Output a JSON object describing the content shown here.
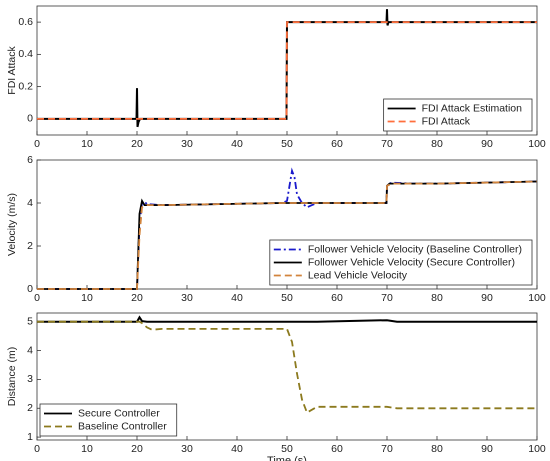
{
  "chart_data": [
    {
      "type": "line",
      "ylabel": "FDI Attack",
      "x": [
        0,
        19.9,
        20,
        20.1,
        20.3,
        20.6,
        21,
        49.9,
        50,
        69.9,
        70,
        70.1,
        70.3,
        100
      ],
      "series": [
        {
          "name": "FDI Attack Estimation",
          "color": "#000000",
          "dash": "solid",
          "values": [
            0,
            0,
            0.19,
            -0.05,
            -0.02,
            0,
            0,
            0,
            0.6,
            0.6,
            0.68,
            0.58,
            0.6,
            0.6
          ]
        },
        {
          "name": "FDI Attack",
          "color": "#ff6f3c",
          "dash": "dashed",
          "values": [
            0,
            0,
            0,
            0,
            0,
            0,
            0,
            0,
            0.6,
            0.6,
            0.6,
            0.6,
            0.6,
            0.6
          ]
        }
      ],
      "xlim": [
        0,
        100
      ],
      "xticks": [
        0,
        10,
        20,
        30,
        40,
        50,
        60,
        70,
        80,
        90,
        100
      ],
      "ylim": [
        -0.1,
        0.7
      ],
      "yticks": [
        0,
        0.2,
        0.4,
        0.6
      ],
      "legend": "lower right"
    },
    {
      "type": "line",
      "ylabel": "Velocity (m/s)",
      "x": [
        0,
        20,
        20.5,
        21,
        21.5,
        22,
        25,
        49,
        50,
        50.5,
        51,
        51.5,
        52,
        53,
        54,
        55,
        56,
        69.9,
        70,
        70.5,
        71,
        75,
        80,
        90,
        100
      ],
      "series": [
        {
          "name": "Follower Vehicle Velocity (Baseline Controller)",
          "color": "#1a1acc",
          "dash": "dashdot",
          "values": [
            0,
            0,
            3,
            4.0,
            4.05,
            3.95,
            3.9,
            4.0,
            4.1,
            4.8,
            5.5,
            5.2,
            4.4,
            4.0,
            3.8,
            3.9,
            4.0,
            4.0,
            4.8,
            4.9,
            4.95,
            4.9,
            4.9,
            4.95,
            5.0
          ]
        },
        {
          "name": "Follower Vehicle Velocity (Secure Controller)",
          "color": "#000000",
          "dash": "solid",
          "values": [
            0,
            0,
            3.5,
            4.1,
            3.9,
            3.9,
            3.9,
            4.0,
            4.0,
            4.0,
            4.0,
            4.0,
            4.0,
            4.0,
            4.0,
            4.0,
            4.0,
            4.0,
            4.8,
            4.9,
            4.9,
            4.9,
            4.9,
            4.95,
            5.0
          ]
        },
        {
          "name": "Lead Vehicle Velocity",
          "color": "#d2843c",
          "dash": "dashed",
          "values": [
            0,
            0,
            2.5,
            3.8,
            3.85,
            3.9,
            3.9,
            4.0,
            4.0,
            4.0,
            4.0,
            4.0,
            4.0,
            4.0,
            4.0,
            4.0,
            4.0,
            4.0,
            4.8,
            4.85,
            4.9,
            4.9,
            4.9,
            4.95,
            5.0
          ]
        }
      ],
      "xlim": [
        0,
        100
      ],
      "xticks": [
        0,
        10,
        20,
        30,
        40,
        50,
        60,
        70,
        80,
        90,
        100
      ],
      "ylim": [
        0,
        6
      ],
      "yticks": [
        0,
        2,
        4,
        6
      ],
      "legend": "lower right"
    },
    {
      "type": "line",
      "ylabel": "Distance (m)",
      "xlabel": "Time (s)",
      "x": [
        0,
        20,
        20.5,
        21,
        22,
        23,
        25,
        50,
        51,
        52,
        53,
        54,
        55,
        56,
        70,
        72,
        100
      ],
      "series": [
        {
          "name": "Secure Controller",
          "color": "#000000",
          "dash": "solid",
          "values": [
            5,
            5,
            5.15,
            5.02,
            5,
            5,
            5,
            5,
            5,
            5,
            5,
            5,
            5,
            5,
            5.05,
            5,
            5
          ]
        },
        {
          "name": "Baseline Controller",
          "color": "#8c7a1e",
          "dash": "dashed",
          "values": [
            5,
            5,
            5,
            4.95,
            4.8,
            4.72,
            4.75,
            4.75,
            4.3,
            3.2,
            2.3,
            1.85,
            1.95,
            2.05,
            2.05,
            2.0,
            2.0
          ]
        }
      ],
      "xlim": [
        0,
        100
      ],
      "xticks": [
        0,
        10,
        20,
        30,
        40,
        50,
        60,
        70,
        80,
        90,
        100
      ],
      "ylim": [
        0.9,
        5.3
      ],
      "yticks": [
        1,
        2,
        3,
        4,
        5
      ],
      "legend": "lower left"
    }
  ]
}
